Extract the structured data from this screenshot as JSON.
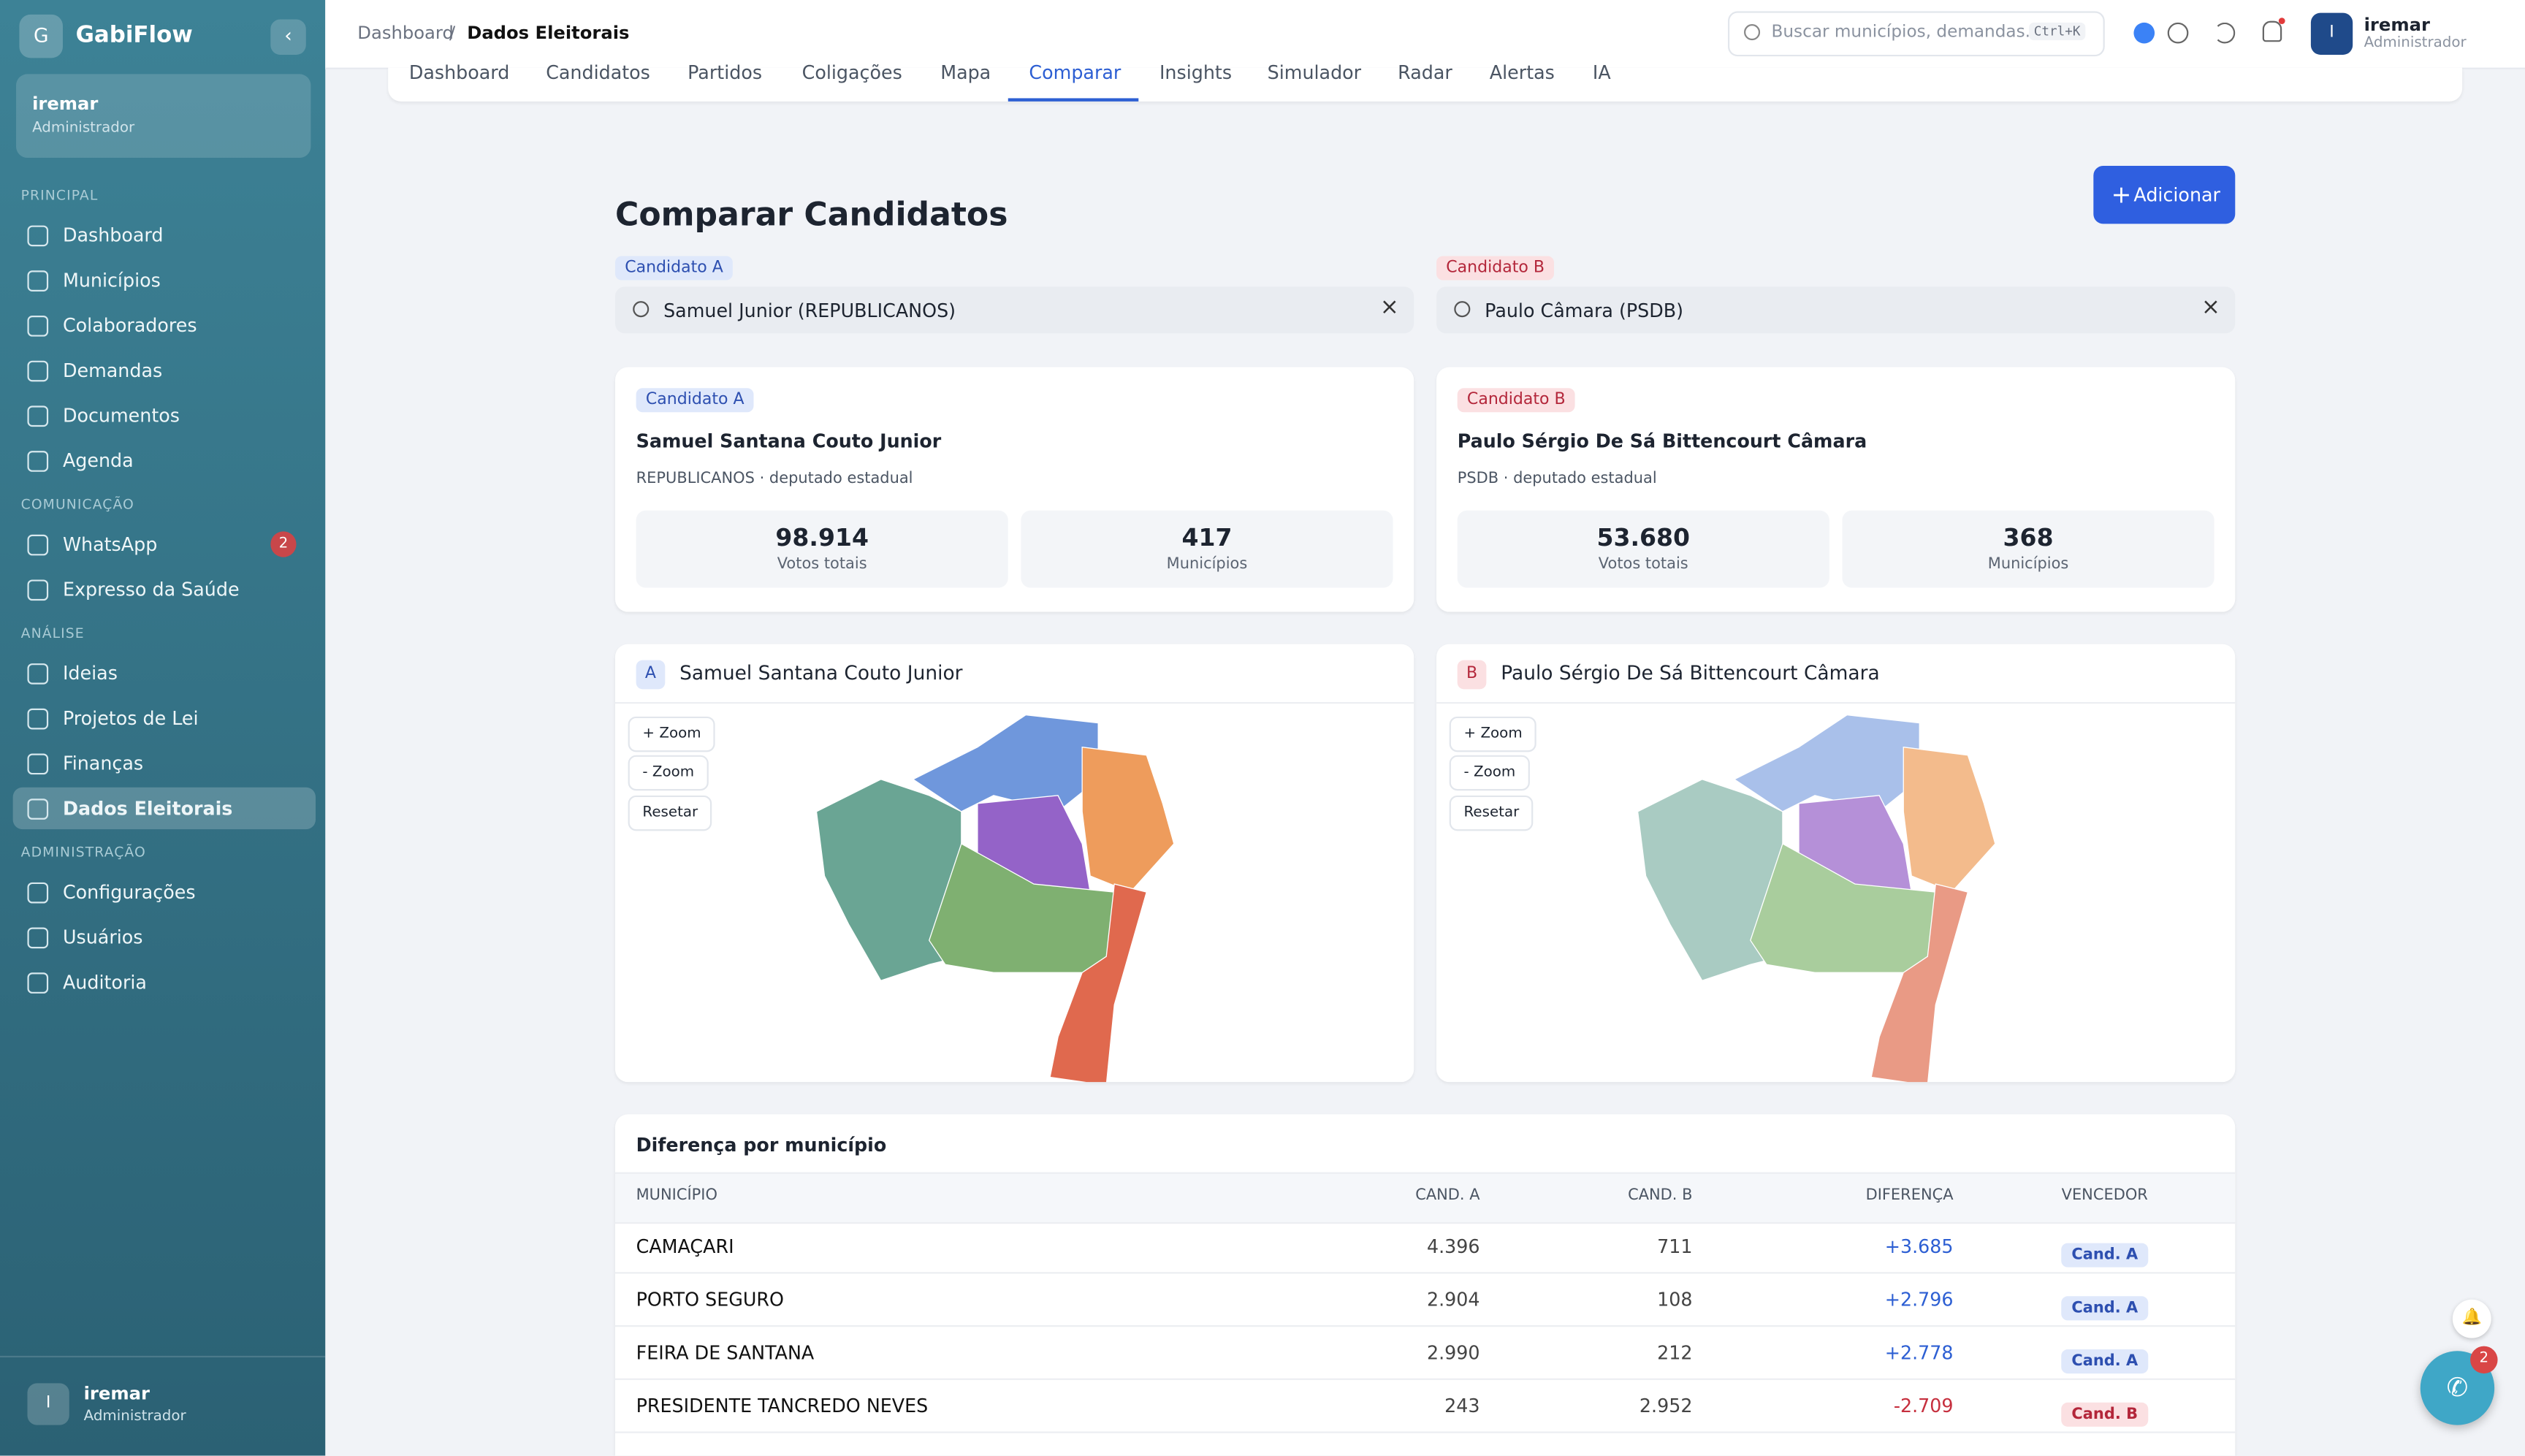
{
  "sidebar": {
    "logo": "G",
    "brand": "GabiFlow",
    "user": {
      "name": "iremar",
      "role": "Administrador"
    },
    "sections": [
      {
        "title": "PRINCIPAL",
        "items": [
          "Dashboard",
          "Municípios",
          "Colaboradores",
          "Demandas",
          "Documentos",
          "Agenda"
        ]
      },
      {
        "title": "COMUNICAÇÃO",
        "items": [
          "WhatsApp",
          "Expresso da Saúde"
        ]
      },
      {
        "title": "ANÁLISE",
        "items": [
          "Ideias",
          "Projetos de Lei",
          "Finanças",
          "Dados Eleitorais"
        ]
      },
      {
        "title": "ADMINISTRAÇÃO",
        "items": [
          "Configurações",
          "Usuários",
          "Auditoria"
        ]
      }
    ],
    "whatsapp_badge": "2",
    "footer_user": {
      "initial": "I",
      "name": "iremar",
      "role": "Administrador"
    }
  },
  "topbar": {
    "breadcrumb": [
      "Dashboard",
      "/",
      "Dados Eleitorais"
    ],
    "search_placeholder": "Buscar municípios, demandas...",
    "shortcut": "Ctrl+K",
    "user": {
      "initial": "I",
      "name": "iremar",
      "role": "Administrador"
    }
  },
  "tabs": [
    "Dashboard",
    "Candidatos",
    "Partidos",
    "Coligações",
    "Mapa",
    "Comparar",
    "Insights",
    "Simulador",
    "Radar",
    "Alertas",
    "IA"
  ],
  "page": {
    "title": "Comparar Candidatos",
    "add_button": "Adicionar",
    "candidates": [
      {
        "tag": "Candidato A",
        "search": "Samuel Junior (REPUBLICANOS)",
        "name": "Samuel Santana Couto Junior",
        "meta": "REPUBLICANOS · deputado estadual",
        "votes": "98.914",
        "votes_label": "Votos totais",
        "municipios": "417",
        "municipios_label": "Municípios",
        "letter": "A"
      },
      {
        "tag": "Candidato B",
        "search": "Paulo Câmara (PSDB)",
        "name": "Paulo Sérgio De Sá Bittencourt Câmara",
        "meta": "PSDB · deputado estadual",
        "votes": "53.680",
        "votes_label": "Votos totais",
        "municipios": "368",
        "municipios_label": "Municípios",
        "letter": "B"
      }
    ],
    "zoom_in": "+ Zoom",
    "zoom_out": "- Zoom",
    "reset": "Resetar"
  },
  "table": {
    "title": "Diferença por município",
    "headers": [
      "MUNICÍPIO",
      "CAND. A",
      "CAND. B",
      "DIFERENÇA",
      "VENCEDOR"
    ],
    "rows": [
      [
        "CAMAÇARI",
        "4.396",
        "711",
        "+3.685",
        "Cand. A"
      ],
      [
        "PORTO SEGURO",
        "2.904",
        "108",
        "+2.796",
        "Cand. A"
      ],
      [
        "FEIRA DE SANTANA",
        "2.990",
        "212",
        "+2.778",
        "Cand. A"
      ],
      [
        "PRESIDENTE TANCREDO NEVES",
        "243",
        "2.952",
        "-2.709",
        "Cand. B"
      ]
    ]
  },
  "fab_badge": "2"
}
